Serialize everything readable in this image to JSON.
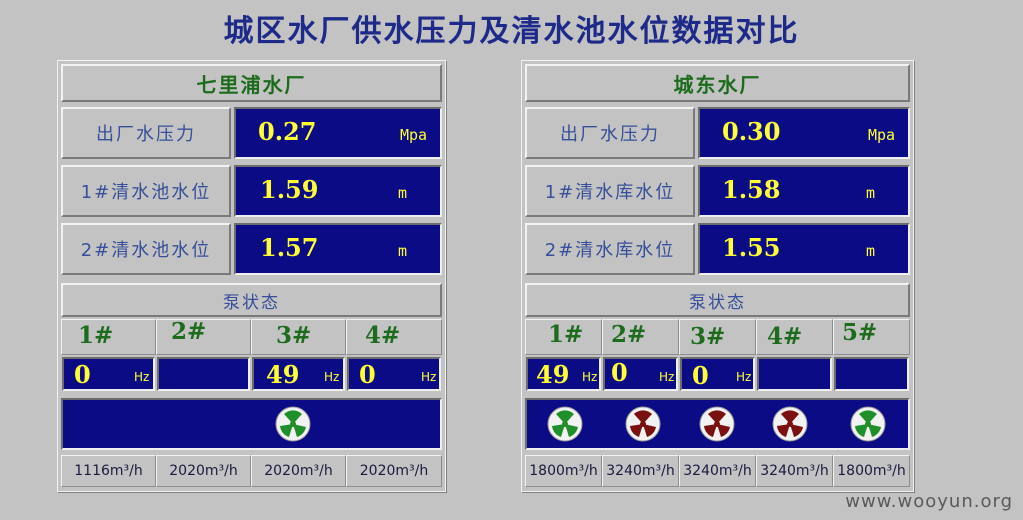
{
  "title": "城区水厂供水压力及清水池水位数据对比",
  "watermark": "www.wooyun.org",
  "plants": [
    {
      "name": "七里浦水厂",
      "rows": [
        {
          "label": "出厂水压力",
          "value": "0.27",
          "unit": "Mpa"
        },
        {
          "label": "1#清水池水位",
          "value": "1.59",
          "unit": "m"
        },
        {
          "label": "2#清水池水位",
          "value": "1.57",
          "unit": "m"
        }
      ],
      "pump_status_label": "泵状态",
      "pumps": [
        {
          "num": "1#",
          "hz": "0",
          "hz_unit": "Hz",
          "fan_state": "none",
          "flow": "1116m³/h"
        },
        {
          "num": "2#",
          "hz": "",
          "hz_unit": "",
          "fan_state": "none",
          "flow": "2020m³/h"
        },
        {
          "num": "3#",
          "hz": "49",
          "hz_unit": "Hz",
          "fan_state": "running",
          "flow": "2020m³/h"
        },
        {
          "num": "4#",
          "hz": "0",
          "hz_unit": "Hz",
          "fan_state": "none",
          "flow": "2020m³/h"
        }
      ]
    },
    {
      "name": "城东水厂",
      "rows": [
        {
          "label": "出厂水压力",
          "value": "0.30",
          "unit": "Mpa"
        },
        {
          "label": "1#清水库水位",
          "value": "1.58",
          "unit": "m"
        },
        {
          "label": "2#清水库水位",
          "value": "1.55",
          "unit": "m"
        }
      ],
      "pump_status_label": "泵状态",
      "pumps": [
        {
          "num": "1#",
          "hz": "49",
          "hz_unit": "Hz",
          "fan_state": "running",
          "flow": "1800m³/h"
        },
        {
          "num": "2#",
          "hz": "0",
          "hz_unit": "Hz",
          "fan_state": "stopped",
          "flow": "3240m³/h"
        },
        {
          "num": "3#",
          "hz": "0",
          "hz_unit": "Hz",
          "fan_state": "stopped",
          "flow": "3240m³/h"
        },
        {
          "num": "4#",
          "hz": "",
          "hz_unit": "",
          "fan_state": "stopped",
          "flow": "3240m³/h"
        },
        {
          "num": "5#",
          "hz": "",
          "hz_unit": "",
          "fan_state": "running",
          "flow": "1800m³/h"
        }
      ]
    }
  ],
  "colors": {
    "running": "#1f8f2a",
    "stopped": "#7a1010",
    "panel_blue": "#0b0b86",
    "value_yellow": "#ffff33"
  }
}
